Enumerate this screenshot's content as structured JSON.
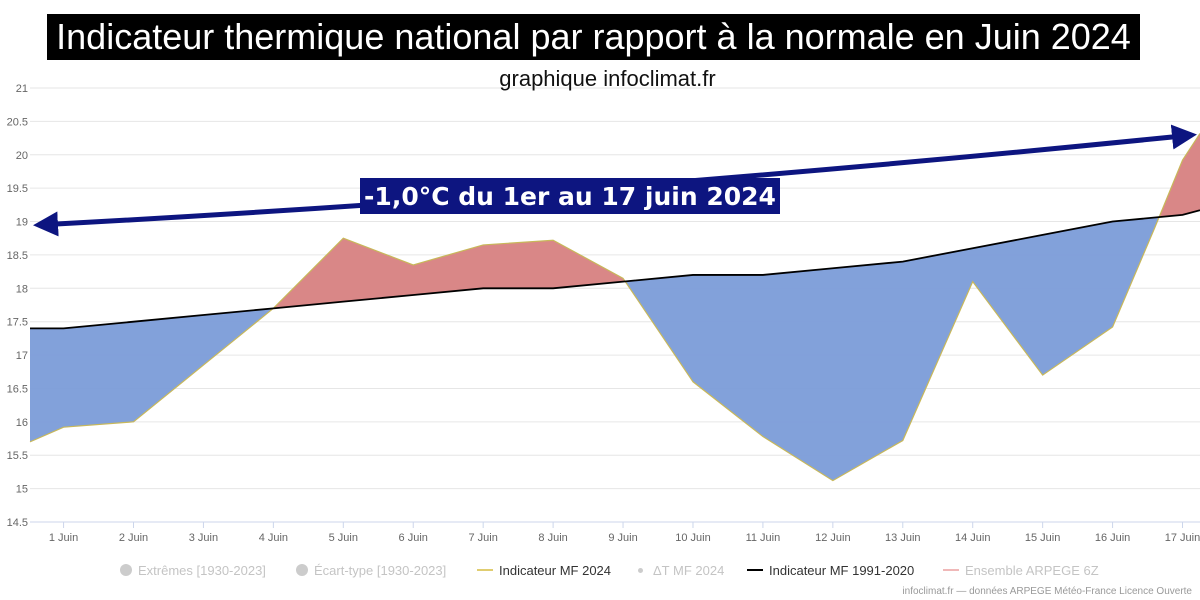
{
  "title": "Indicateur thermique national par rapport à la normale en Juin 2024",
  "subtitle": "graphique infoclimat.fr",
  "credits": "infoclimat.fr — données ARPEGE Météo-France Licence Ouverte",
  "colors": {
    "above": "#d98787",
    "below": "#7b9cd8",
    "indicator_2024": "#c8b85a",
    "normal": "#000000",
    "arrow": "#0d1580",
    "annotation_bg": "#0d1580"
  },
  "legend": [
    {
      "label": "Extrêmes [1930-2023]",
      "symbol": "dot",
      "state": "hidden"
    },
    {
      "label": "Écart-type [1930-2023]",
      "symbol": "dot",
      "state": "hidden"
    },
    {
      "label": "Indicateur MF 2024",
      "symbol": "line",
      "color": "#e0cd70",
      "state": "visible"
    },
    {
      "label": "ΔT MF 2024",
      "symbol": "small-dot",
      "state": "hidden"
    },
    {
      "label": "Indicateur MF 1991-2020",
      "symbol": "line",
      "color": "#000000",
      "state": "visible"
    },
    {
      "label": "Ensemble ARPEGE 6Z",
      "symbol": "line",
      "color": "#f0b8b8",
      "state": "hidden"
    }
  ],
  "chart_data": {
    "type": "area",
    "x_tick_labels": [
      "1 Juin",
      "2 Juin",
      "3 Juin",
      "4 Juin",
      "5 Juin",
      "6 Juin",
      "7 Juin",
      "8 Juin",
      "9 Juin",
      "10 Juin",
      "11 Juin",
      "12 Juin",
      "13 Juin",
      "14 Juin",
      "15 Juin",
      "16 Juin",
      "17 Juin"
    ],
    "x_range": [
      0.52,
      17.25
    ],
    "ylim": [
      14.5,
      21
    ],
    "y_ticks": [
      14.5,
      15,
      15.5,
      16,
      16.5,
      17,
      17.5,
      18,
      18.5,
      19,
      19.5,
      20,
      20.5,
      21
    ],
    "grid": true,
    "legend_position": "bottom",
    "annotation": "-1,0°C du 1er au 17 juin 2024",
    "series": [
      {
        "name": "Indicateur MF 2024",
        "x": [
          0.52,
          1,
          2,
          3,
          4,
          5,
          6,
          7,
          8,
          9,
          10,
          11,
          12,
          13,
          14,
          15,
          16,
          16.6,
          17,
          17.25
        ],
        "values": [
          15.7,
          15.92,
          16.0,
          16.85,
          17.7,
          18.75,
          18.35,
          18.65,
          18.72,
          18.15,
          16.6,
          15.78,
          15.12,
          15.72,
          18.1,
          16.7,
          17.42,
          18.9,
          19.92,
          20.32
        ]
      },
      {
        "name": "Indicateur MF 1991-2020",
        "x": [
          0.52,
          1,
          2,
          3,
          4,
          5,
          6,
          7,
          8,
          9,
          10,
          11,
          12,
          13,
          14,
          15,
          16,
          17,
          17.25
        ],
        "values": [
          17.4,
          17.4,
          17.5,
          17.6,
          17.7,
          17.8,
          17.9,
          18.0,
          18.0,
          18.1,
          18.2,
          18.2,
          18.3,
          18.4,
          18.6,
          18.8,
          19.0,
          19.1,
          19.17
        ]
      }
    ]
  }
}
